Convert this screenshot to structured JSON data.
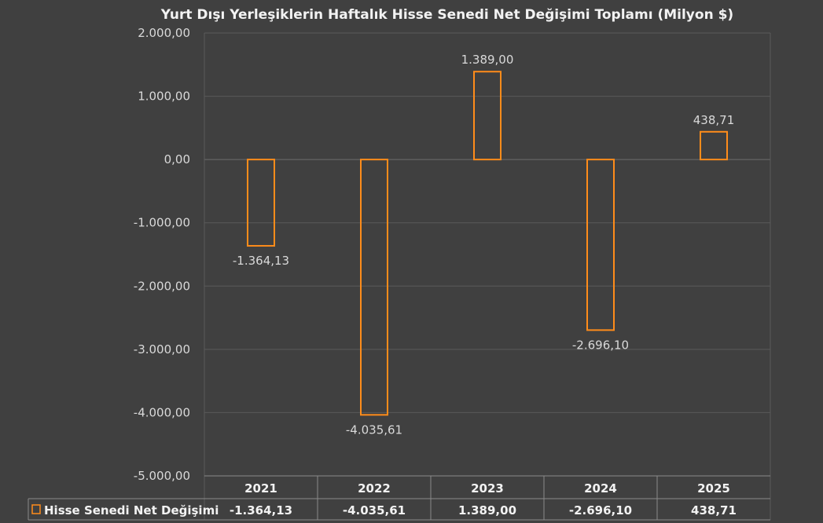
{
  "chart_data": {
    "type": "bar",
    "title": "Yurt Dışı Yerleşiklerin Haftalık Hisse Senedi Net Değişimi Toplamı (Milyon $)",
    "categories": [
      "2021",
      "2022",
      "2023",
      "2024",
      "2025"
    ],
    "series": [
      {
        "name": "Hisse Senedi Net Değişimi",
        "values": [
          -1364.13,
          -4035.61,
          1389.0,
          -2696.1,
          438.71
        ],
        "labels": [
          "-1.364,13",
          "-4.035,61",
          "1.389,00",
          "-2.696,10",
          "438,71"
        ]
      }
    ],
    "ylim": [
      -5000,
      2000
    ],
    "yticks": [
      2000,
      1000,
      0,
      -1000,
      -2000,
      -3000,
      -4000,
      -5000
    ],
    "ytick_labels": [
      "2.000,00",
      "1.000,00",
      "0,00",
      "-1.000,00",
      "-2.000,00",
      "-3.000,00",
      "-4.000,00",
      "-5.000,00"
    ],
    "grid": true,
    "legend": "data-table",
    "colors": {
      "background": "#404040",
      "bar_outline": "#ff8c1a",
      "grid": "#5a5a5a",
      "table_border": "#8a8a8a"
    }
  }
}
